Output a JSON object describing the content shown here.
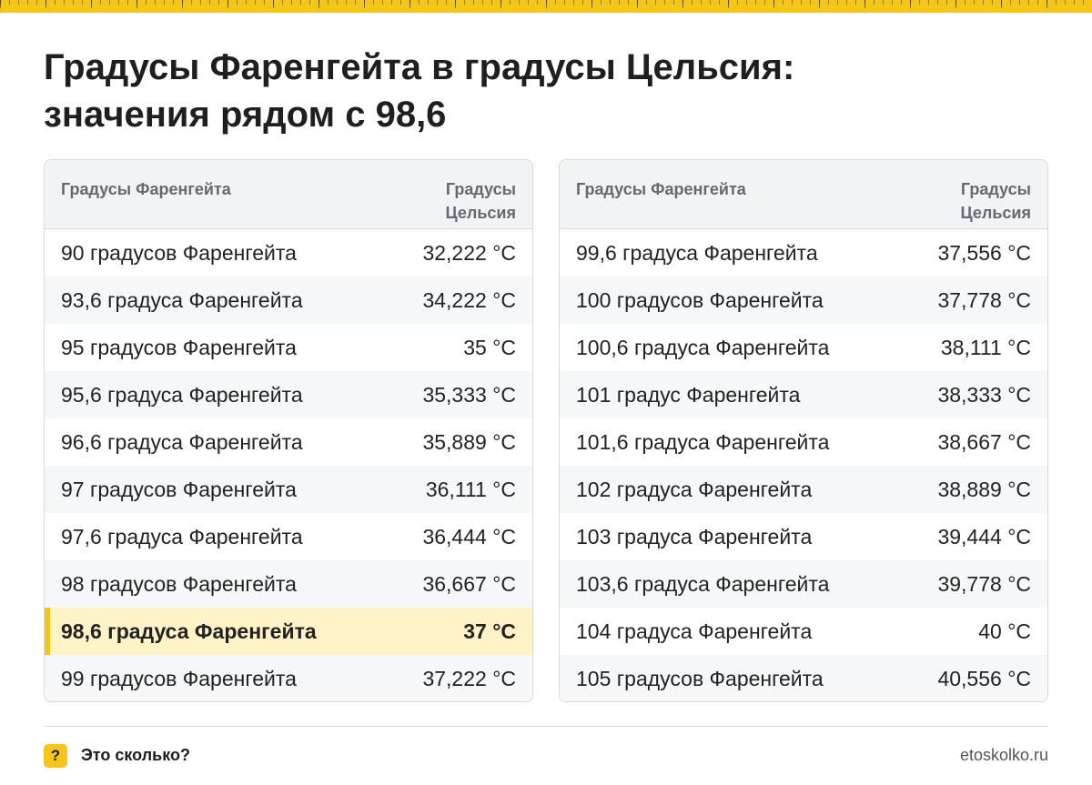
{
  "title": {
    "line1": "Градусы Фаренгейта в градусы Цельсия:",
    "line2": "значения рядом с 98,6"
  },
  "tables": [
    {
      "header": {
        "fahrenheit": "Градусы Фаренгейта",
        "celsius": "Градусы Цельсия"
      },
      "rows": [
        {
          "f": "90 градусов Фаренгейта",
          "c": "32,222 °C"
        },
        {
          "f": "93,6 градуса Фаренгейта",
          "c": "34,222 °C"
        },
        {
          "f": "95 градусов Фаренгейта",
          "c": "35 °C"
        },
        {
          "f": "95,6 градуса Фаренгейта",
          "c": "35,333 °C"
        },
        {
          "f": "96,6 градуса Фаренгейта",
          "c": "35,889 °C"
        },
        {
          "f": "97 градусов Фаренгейта",
          "c": "36,111 °C"
        },
        {
          "f": "97,6 градуса Фаренгейта",
          "c": "36,444 °C"
        },
        {
          "f": "98 градусов Фаренгейта",
          "c": "36,667 °C"
        },
        {
          "f": "98,6 градуса Фаренгейта",
          "c": "37 °C"
        },
        {
          "f": "99 градусов Фаренгейта",
          "c": "37,222 °C"
        }
      ]
    },
    {
      "header": {
        "fahrenheit": "Градусы Фаренгейта",
        "celsius": "Градусы Цельсия"
      },
      "rows": [
        {
          "f": "99,6 градуса Фаренгейта",
          "c": "37,556 °C"
        },
        {
          "f": "100 градусов Фаренгейта",
          "c": "37,778 °C"
        },
        {
          "f": "100,6 градуса Фаренгейта",
          "c": "38,111 °C"
        },
        {
          "f": "101 градус Фаренгейта",
          "c": "38,333 °C"
        },
        {
          "f": "101,6 градуса Фаренгейта",
          "c": "38,667 °C"
        },
        {
          "f": "102 градуса Фаренгейта",
          "c": "38,889 °C"
        },
        {
          "f": "103 градуса Фаренгейта",
          "c": "39,444 °C"
        },
        {
          "f": "103,6 градуса Фаренгейта",
          "c": "39,778 °C"
        },
        {
          "f": "104 градуса Фаренгейта",
          "c": "40 °C"
        },
        {
          "f": "105 градусов Фаренгейта",
          "c": "40,556 °C"
        }
      ]
    }
  ],
  "footer": {
    "icon": "?",
    "brand": "Это сколько?",
    "site": "etoskolko.ru"
  },
  "colors": {
    "accent": "#f5c518",
    "highlight_row": "#fdf3c6"
  }
}
